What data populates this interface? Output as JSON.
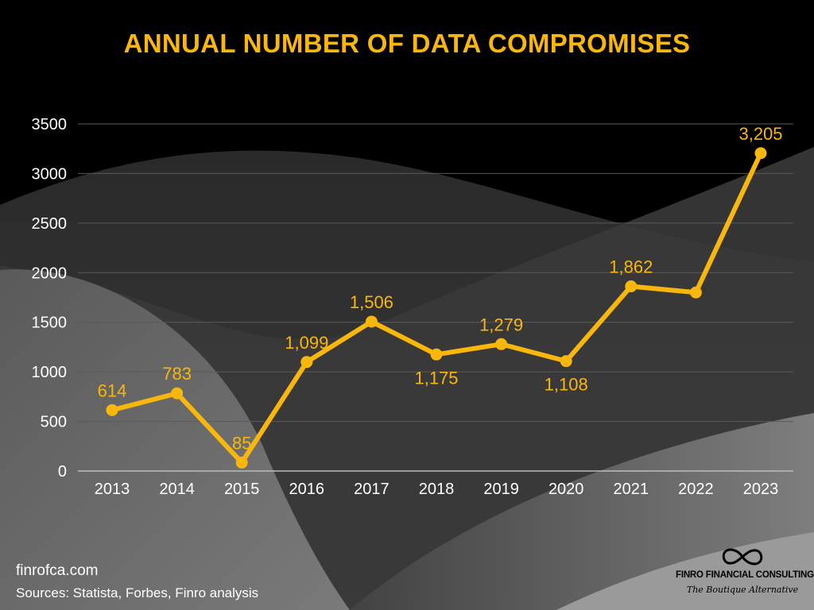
{
  "title": "ANNUAL NUMBER OF DATA COMPROMISES",
  "colors": {
    "accent": "#f9b70b",
    "background": "#000000",
    "grid": "#5a5a5a",
    "axis_text": "#ffffff"
  },
  "chart_data": {
    "type": "line",
    "title": "ANNUAL NUMBER OF DATA COMPROMISES",
    "xlabel": "",
    "ylabel": "",
    "categories": [
      "2013",
      "2014",
      "2015",
      "2016",
      "2017",
      "2018",
      "2019",
      "2020",
      "2021",
      "2022",
      "2023"
    ],
    "values": [
      614,
      783,
      85,
      1099,
      1506,
      1175,
      1279,
      1108,
      1862,
      1800,
      3205
    ],
    "data_labels": [
      "614",
      "783",
      "85",
      "1,099",
      "1,506",
      "1,175",
      "1,279",
      "1,108",
      "1,862",
      "",
      "3,205"
    ],
    "label_positions": [
      "above",
      "above",
      "above",
      "above",
      "above",
      "below",
      "above",
      "below",
      "above",
      "none",
      "above"
    ],
    "y_ticks": [
      0,
      500,
      1000,
      1500,
      2000,
      2500,
      3000,
      3500
    ],
    "ylim": [
      0,
      3500
    ],
    "grid": true,
    "legend": "none"
  },
  "footer": {
    "site": "finrofca.com",
    "sources": "Sources: Statista, Forbes, Finro analysis"
  },
  "brand": {
    "logo_icon": "infinity-icon",
    "name": "FINRO FINANCIAL CONSULTING",
    "tagline": "The Boutique Alternative"
  }
}
